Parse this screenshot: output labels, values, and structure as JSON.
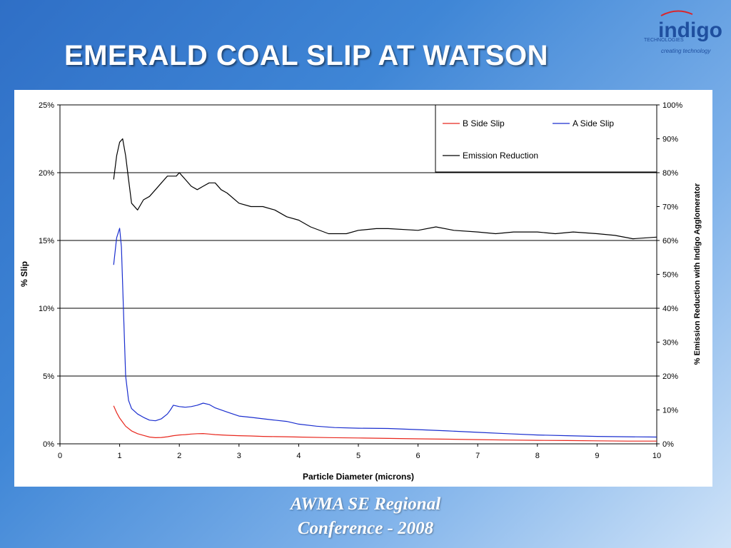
{
  "slide": {
    "title": "EMERALD COAL SLIP AT WATSON",
    "footer_line1": "AWMA SE Regional",
    "footer_line2": "Conference - 2008"
  },
  "logo": {
    "brand": "indigo",
    "sub": "TECHNOLOGIES",
    "tagline": "creating technology"
  },
  "colors": {
    "b_side": "#e8271d",
    "a_side": "#1a2ecf",
    "emission": "#000000",
    "logo_blue": "#1f4f9f",
    "logo_red": "#d9262c"
  },
  "chart_data": {
    "type": "line",
    "title": "",
    "xlabel": "Particle Diameter (microns)",
    "ylabel": "% Slip",
    "y2label": "% Emission Reduction with Indigo Agglomerator",
    "xlim": [
      0,
      10
    ],
    "ylim": [
      0,
      25
    ],
    "y2lim": [
      0,
      100
    ],
    "x_ticks": [
      "0",
      "1",
      "2",
      "3",
      "4",
      "5",
      "6",
      "7",
      "8",
      "9",
      "10"
    ],
    "y_ticks": [
      "0%",
      "5%",
      "10%",
      "15%",
      "20%",
      "25%"
    ],
    "y2_ticks": [
      "0%",
      "10%",
      "20%",
      "30%",
      "40%",
      "50%",
      "60%",
      "70%",
      "80%",
      "90%",
      "100%"
    ],
    "grid": "horizontal major",
    "legend_position": "top-right",
    "series": [
      {
        "name": "B Side Slip",
        "axis": "left",
        "x": [
          0.9,
          0.95,
          1.0,
          1.05,
          1.1,
          1.2,
          1.3,
          1.4,
          1.5,
          1.6,
          1.7,
          1.8,
          1.9,
          2.0,
          2.1,
          2.2,
          2.3,
          2.4,
          2.5,
          2.6,
          2.8,
          3.0,
          3.2,
          3.4,
          3.6,
          3.8,
          4.0,
          4.5,
          5.0,
          5.5,
          6.0,
          6.5,
          7.0,
          7.5,
          8.0,
          8.5,
          9.0,
          9.5,
          10.0
        ],
        "values": [
          2.8,
          2.3,
          1.9,
          1.6,
          1.3,
          0.95,
          0.75,
          0.62,
          0.5,
          0.45,
          0.47,
          0.52,
          0.6,
          0.65,
          0.68,
          0.72,
          0.75,
          0.76,
          0.72,
          0.68,
          0.63,
          0.6,
          0.58,
          0.55,
          0.53,
          0.52,
          0.5,
          0.46,
          0.43,
          0.4,
          0.37,
          0.34,
          0.31,
          0.28,
          0.26,
          0.24,
          0.22,
          0.2,
          0.2
        ]
      },
      {
        "name": "A Side Slip",
        "axis": "left",
        "x": [
          0.9,
          0.95,
          1.0,
          1.03,
          1.07,
          1.1,
          1.15,
          1.2,
          1.3,
          1.4,
          1.5,
          1.6,
          1.7,
          1.8,
          1.85,
          1.9,
          2.0,
          2.1,
          2.2,
          2.3,
          2.4,
          2.5,
          2.6,
          2.8,
          3.0,
          3.2,
          3.4,
          3.6,
          3.8,
          4.0,
          4.3,
          4.6,
          5.0,
          5.5,
          6.0,
          6.5,
          7.0,
          7.5,
          8.0,
          8.5,
          9.0,
          9.5,
          10.0
        ],
        "values": [
          13.2,
          15.2,
          15.9,
          14.5,
          9.0,
          5.0,
          3.2,
          2.6,
          2.2,
          1.95,
          1.75,
          1.7,
          1.85,
          2.2,
          2.5,
          2.85,
          2.75,
          2.7,
          2.75,
          2.85,
          3.0,
          2.9,
          2.65,
          2.35,
          2.05,
          1.95,
          1.85,
          1.75,
          1.65,
          1.45,
          1.3,
          1.2,
          1.15,
          1.13,
          1.05,
          0.95,
          0.85,
          0.75,
          0.65,
          0.6,
          0.55,
          0.52,
          0.5
        ]
      },
      {
        "name": "Emission Reduction",
        "axis": "right",
        "x": [
          0.9,
          0.95,
          1.0,
          1.05,
          1.1,
          1.15,
          1.2,
          1.3,
          1.4,
          1.5,
          1.6,
          1.7,
          1.8,
          1.9,
          1.95,
          2.0,
          2.1,
          2.2,
          2.3,
          2.4,
          2.5,
          2.6,
          2.7,
          2.8,
          3.0,
          3.2,
          3.4,
          3.6,
          3.8,
          4.0,
          4.2,
          4.5,
          4.8,
          5.0,
          5.3,
          5.5,
          6.0,
          6.3,
          6.6,
          7.0,
          7.3,
          7.6,
          8.0,
          8.3,
          8.6,
          9.0,
          9.3,
          9.6,
          10.0
        ],
        "values": [
          78,
          85,
          89,
          90,
          85,
          78,
          71,
          69,
          72,
          73,
          75,
          77,
          79,
          79,
          79,
          80,
          78,
          76,
          75,
          76,
          77,
          77,
          75,
          74,
          71,
          70,
          70,
          69,
          67,
          66,
          64,
          62,
          62,
          63,
          63.5,
          63.5,
          63,
          64,
          63,
          62.5,
          62,
          62.5,
          62.5,
          62,
          62.5,
          62,
          61.5,
          60.5,
          61
        ]
      }
    ]
  }
}
